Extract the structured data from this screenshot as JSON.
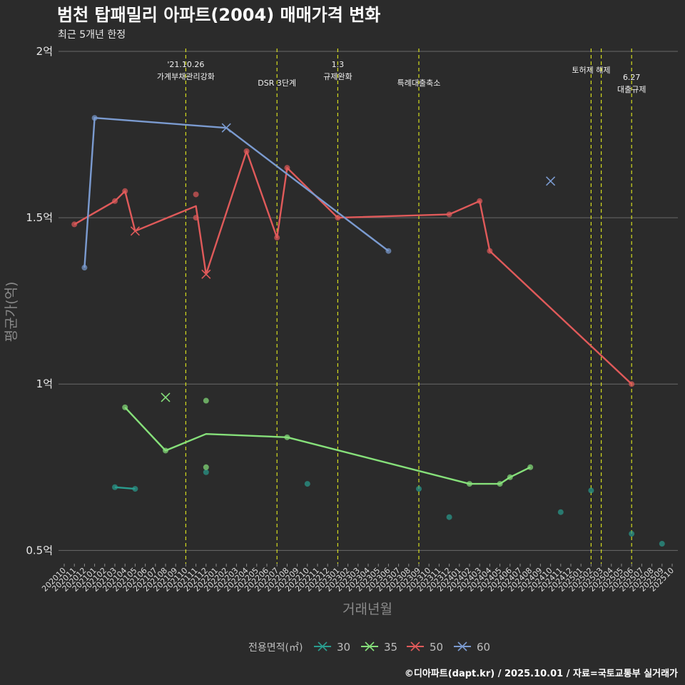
{
  "chart_data": {
    "type": "line",
    "title": "범천 탑패밀리 아파트(2004) 매매가격 변화",
    "subtitle": "최근 5개년 한정",
    "xlabel": "거래년월",
    "ylabel": "평균가(억)",
    "caption": "©디아파트(dapt.kr) / 2025.10.01 / 자료=국토교통부 실거래가",
    "ylim": [
      0.46,
      2.03
    ],
    "yticks": [
      {
        "value": 0.5,
        "label": "0.5억"
      },
      {
        "value": 1.0,
        "label": "1억"
      },
      {
        "value": 1.5,
        "label": "1.5억"
      },
      {
        "value": 2.0,
        "label": "2억"
      }
    ],
    "months": [
      "202010",
      "202011",
      "202012",
      "202101",
      "202102",
      "202103",
      "202104",
      "202105",
      "202106",
      "202107",
      "202108",
      "202109",
      "202110",
      "202111",
      "202112",
      "202201",
      "202202",
      "202203",
      "202204",
      "202205",
      "202206",
      "202207",
      "202208",
      "202209",
      "202210",
      "202211",
      "202212",
      "202301",
      "202302",
      "202303",
      "202304",
      "202305",
      "202306",
      "202307",
      "202308",
      "202309",
      "202310",
      "202311",
      "202312",
      "202401",
      "202402",
      "202403",
      "202404",
      "202405",
      "202406",
      "202407",
      "202408",
      "202409",
      "202410",
      "202411",
      "202412",
      "202501",
      "202502",
      "202503",
      "202504",
      "202505",
      "202506",
      "202507",
      "202508",
      "202509",
      "202510"
    ],
    "events": [
      {
        "month": "202110",
        "lines": [
          "'21.10.26",
          "가계부채관리강화"
        ]
      },
      {
        "month": "202207",
        "lines": [
          "DSR 3단계"
        ]
      },
      {
        "month": "202301",
        "lines": [
          "1.3",
          "규제완화"
        ]
      },
      {
        "month": "202309",
        "lines": [
          "특례대출축소"
        ]
      },
      {
        "month": "202502",
        "lines": [
          "토허제 해제"
        ]
      },
      {
        "month": "202503",
        "lines": [
          ""
        ]
      },
      {
        "month": "202506",
        "lines": [
          "6.27",
          "대출규제"
        ]
      }
    ],
    "legend": {
      "title": "전용면적(㎡)"
    },
    "series": [
      {
        "name": "30",
        "color": "#2a9d8f",
        "line": [
          [
            "202103",
            0.69
          ],
          [
            "202105",
            0.685
          ]
        ],
        "points": [
          [
            "202103",
            0.69
          ],
          [
            "202105",
            0.685
          ],
          [
            "202112",
            0.735
          ],
          [
            "202210",
            0.7
          ],
          [
            "202309",
            0.685
          ],
          [
            "202312",
            0.6
          ],
          [
            "202411",
            0.615
          ],
          [
            "202502",
            0.68
          ],
          [
            "202506",
            0.55
          ],
          [
            "202509",
            0.52
          ]
        ],
        "crosses": []
      },
      {
        "name": "35",
        "color": "#86e07a",
        "line": [
          [
            "202104",
            0.93
          ],
          [
            "202108",
            0.8
          ],
          [
            "202112",
            0.85
          ],
          [
            "202208",
            0.84
          ],
          [
            "202402",
            0.7
          ],
          [
            "202405",
            0.7
          ],
          [
            "202406",
            0.72
          ],
          [
            "202408",
            0.75
          ]
        ],
        "points": [
          [
            "202104",
            0.93
          ],
          [
            "202108",
            0.8
          ],
          [
            "202112",
            0.95
          ],
          [
            "202112",
            0.75
          ],
          [
            "202208",
            0.84
          ],
          [
            "202402",
            0.7
          ],
          [
            "202405",
            0.7
          ],
          [
            "202406",
            0.72
          ],
          [
            "202408",
            0.75
          ]
        ],
        "crosses": [
          [
            "202108",
            0.96
          ]
        ]
      },
      {
        "name": "50",
        "color": "#e05a5a",
        "line": [
          [
            "202011",
            1.48
          ],
          [
            "202103",
            1.55
          ],
          [
            "202104",
            1.58
          ],
          [
            "202105",
            1.46
          ],
          [
            "202111",
            1.535
          ],
          [
            "202112",
            1.33
          ],
          [
            "202204",
            1.7
          ],
          [
            "202207",
            1.44
          ],
          [
            "202208",
            1.65
          ],
          [
            "202301",
            1.5
          ],
          [
            "202312",
            1.51
          ],
          [
            "202403",
            1.55
          ],
          [
            "202404",
            1.4
          ],
          [
            "202506",
            1.0
          ]
        ],
        "points": [
          [
            "202011",
            1.48
          ],
          [
            "202103",
            1.55
          ],
          [
            "202104",
            1.58
          ],
          [
            "202111",
            1.57
          ],
          [
            "202111",
            1.5
          ],
          [
            "202204",
            1.7
          ],
          [
            "202207",
            1.44
          ],
          [
            "202208",
            1.65
          ],
          [
            "202301",
            1.5
          ],
          [
            "202312",
            1.51
          ],
          [
            "202403",
            1.55
          ],
          [
            "202404",
            1.4
          ],
          [
            "202506",
            1.0
          ]
        ],
        "crosses": [
          [
            "202105",
            1.46
          ],
          [
            "202112",
            1.33
          ]
        ]
      },
      {
        "name": "60",
        "color": "#7b9bd0",
        "line": [
          [
            "202012",
            1.35
          ],
          [
            "202101",
            1.8
          ],
          [
            "202202",
            1.77
          ],
          [
            "202306",
            1.4
          ]
        ],
        "points": [
          [
            "202012",
            1.35
          ],
          [
            "202101",
            1.8
          ],
          [
            "202306",
            1.4
          ]
        ],
        "crosses": [
          [
            "202202",
            1.77
          ],
          [
            "202410",
            1.61
          ]
        ]
      }
    ]
  }
}
